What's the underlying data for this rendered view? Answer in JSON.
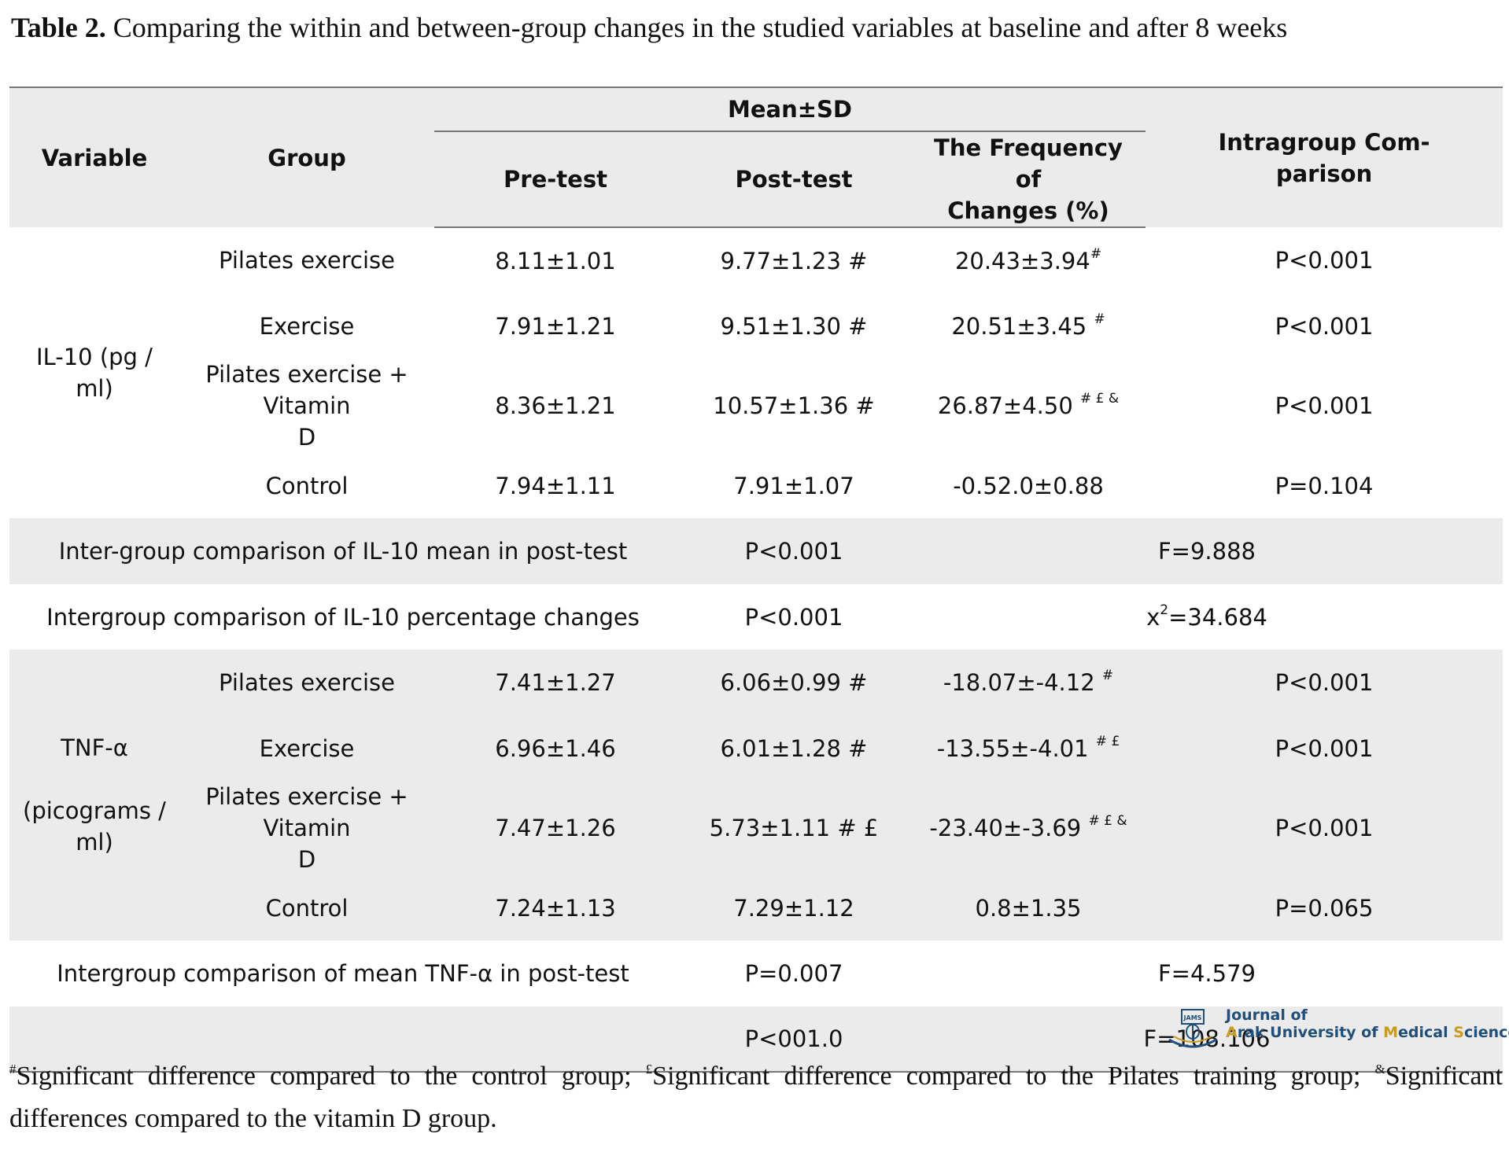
{
  "caption": {
    "label": "Table 2.",
    "text": " Comparing the within and between-group changes in the studied variables at baseline and after 8 weeks"
  },
  "header": {
    "variable": "Variable",
    "group": "Group",
    "mean_sd": "Mean±SD",
    "pre_test": "Pre-test",
    "post_test": "Post-test",
    "freq_line1": "The Frequency of",
    "freq_line2": "Changes (%)",
    "intra_line1": "Intragroup Com-",
    "intra_line2": "parison"
  },
  "il10": {
    "variable": "IL-10 (pg / ml)",
    "rows": [
      {
        "group": "Pilates exercise",
        "pre": "8.11±1.01",
        "post": "9.77±1.23 #",
        "freq": "20.43±3.94",
        "freq_sup": "#",
        "p": "P<0.001"
      },
      {
        "group": "Exercise",
        "pre": "7.91±1.21",
        "post": "9.51±1.30 #",
        "freq": "20.51±3.45 ",
        "freq_sup": "#",
        "p": "P<0.001"
      },
      {
        "group_line1": "Pilates exercise + Vitamin",
        "group_line2": "D",
        "pre": "8.36±1.21",
        "post": "10.57±1.36 #",
        "freq": "26.87±4.50 ",
        "freq_sup": "# £ &",
        "p": "P<0.001"
      },
      {
        "group": "Control",
        "pre": "7.94±1.11",
        "post": "7.91±1.07",
        "freq": "-0.52.0±0.88",
        "p": "P=0.104"
      }
    ],
    "inter_mean": {
      "label": "Inter-group comparison of IL-10 mean in post-test",
      "p": "P<0.001",
      "stat": "F=9.888"
    },
    "inter_pct": {
      "label": "Intergroup comparison of IL-10 percentage changes",
      "p": "P<0.001",
      "stat_pre": "x",
      "stat_sup": "2",
      "stat_post": "=34.684"
    }
  },
  "tnf": {
    "variable_line1": "TNF-α",
    "variable_line2": "(picograms / ml)",
    "rows": [
      {
        "group": "Pilates exercise",
        "pre": "7.41±1.27",
        "post": "6.06±0.99 #",
        "freq": "-18.07±-4.12 ",
        "freq_sup": "#",
        "p": "P<0.001"
      },
      {
        "group": "Exercise",
        "pre": "6.96±1.46",
        "post": "6.01±1.28 #",
        "freq": "-13.55±-4.01 ",
        "freq_sup": "# £",
        "p": "P<0.001"
      },
      {
        "group_line1": "Pilates exercise + Vitamin",
        "group_line2": "D",
        "pre": "7.47±1.26",
        "post": "5.73±1.11 # £",
        "freq": "-23.40±-3.69 ",
        "freq_sup": "# £ &",
        "p": "P<0.001"
      },
      {
        "group": "Control",
        "pre": "7.24±1.13",
        "post": "7.29±1.12",
        "freq": "0.8±1.35",
        "p": "P=0.065"
      }
    ],
    "inter_mean": {
      "label": "Intergroup comparison of mean TNF-α in post-test",
      "p": "P=0.007",
      "stat": "F=4.579"
    },
    "last": {
      "label": "",
      "p": "P<001.0",
      "stat": "F=108.106"
    }
  },
  "footnote": {
    "sup1": "#",
    "text1": "Significant difference compared to the control group; ",
    "sup2": "£",
    "text2": "Significant difference compared to the Pilates training group; ",
    "sup3": "&",
    "text3": "Significant differences compared to the vitamin D group."
  },
  "logo": {
    "line1": "Journal of",
    "line2_a": "A",
    "line2_b": "rak University of ",
    "line2_c": "M",
    "line2_d": "edical ",
    "line2_e": "S",
    "line2_f": "ciences",
    "badge": "JAMS",
    "colors": {
      "blue": "#1f4f7a",
      "gold": "#c99a1c"
    }
  }
}
